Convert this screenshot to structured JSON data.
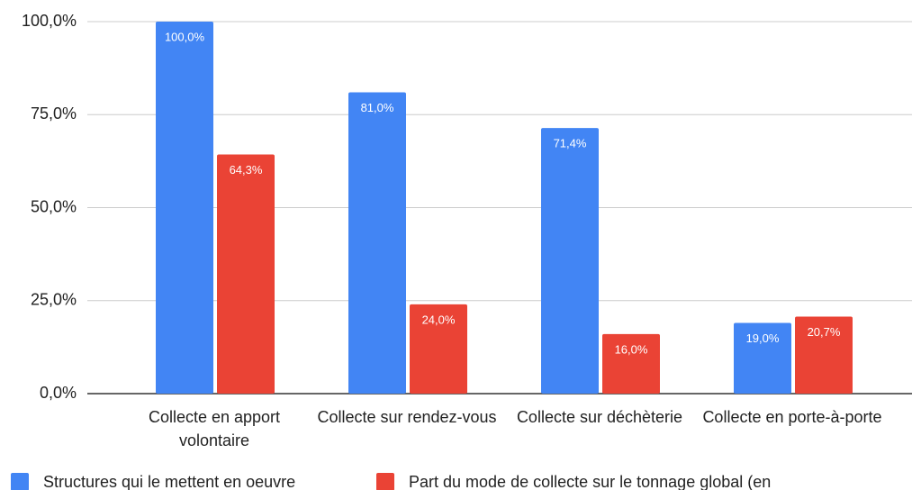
{
  "chart_data": {
    "type": "bar",
    "categories": [
      "Collecte en apport volontaire",
      "Collecte sur rendez-vous",
      "Collecte sur déchèterie",
      "Collecte en porte-à-porte"
    ],
    "series": [
      {
        "name": "Structures qui le mettent en oeuvre",
        "color": "#4285f4",
        "values": [
          100,
          81,
          71.4,
          19
        ],
        "value_labels": [
          "100,0%",
          "81,0%",
          "71,4%",
          "19,0%"
        ]
      },
      {
        "name": "Part du mode de collecte sur le tonnage global (en",
        "color": "#ea4335",
        "values": [
          64.3,
          24,
          16,
          20.7
        ],
        "value_labels": [
          "64,3%",
          "24,0%",
          "16,0%",
          "20,7%"
        ]
      }
    ],
    "ylim": [
      0,
      100
    ],
    "yticks": [
      {
        "value": 0,
        "label": "0,0%"
      },
      {
        "value": 25,
        "label": "25,0%"
      },
      {
        "value": 50,
        "label": "50,0%"
      },
      {
        "value": 75,
        "label": "75,0%"
      },
      {
        "value": 100,
        "label": "100,0%"
      }
    ],
    "grid": true,
    "legend": "bottom"
  }
}
